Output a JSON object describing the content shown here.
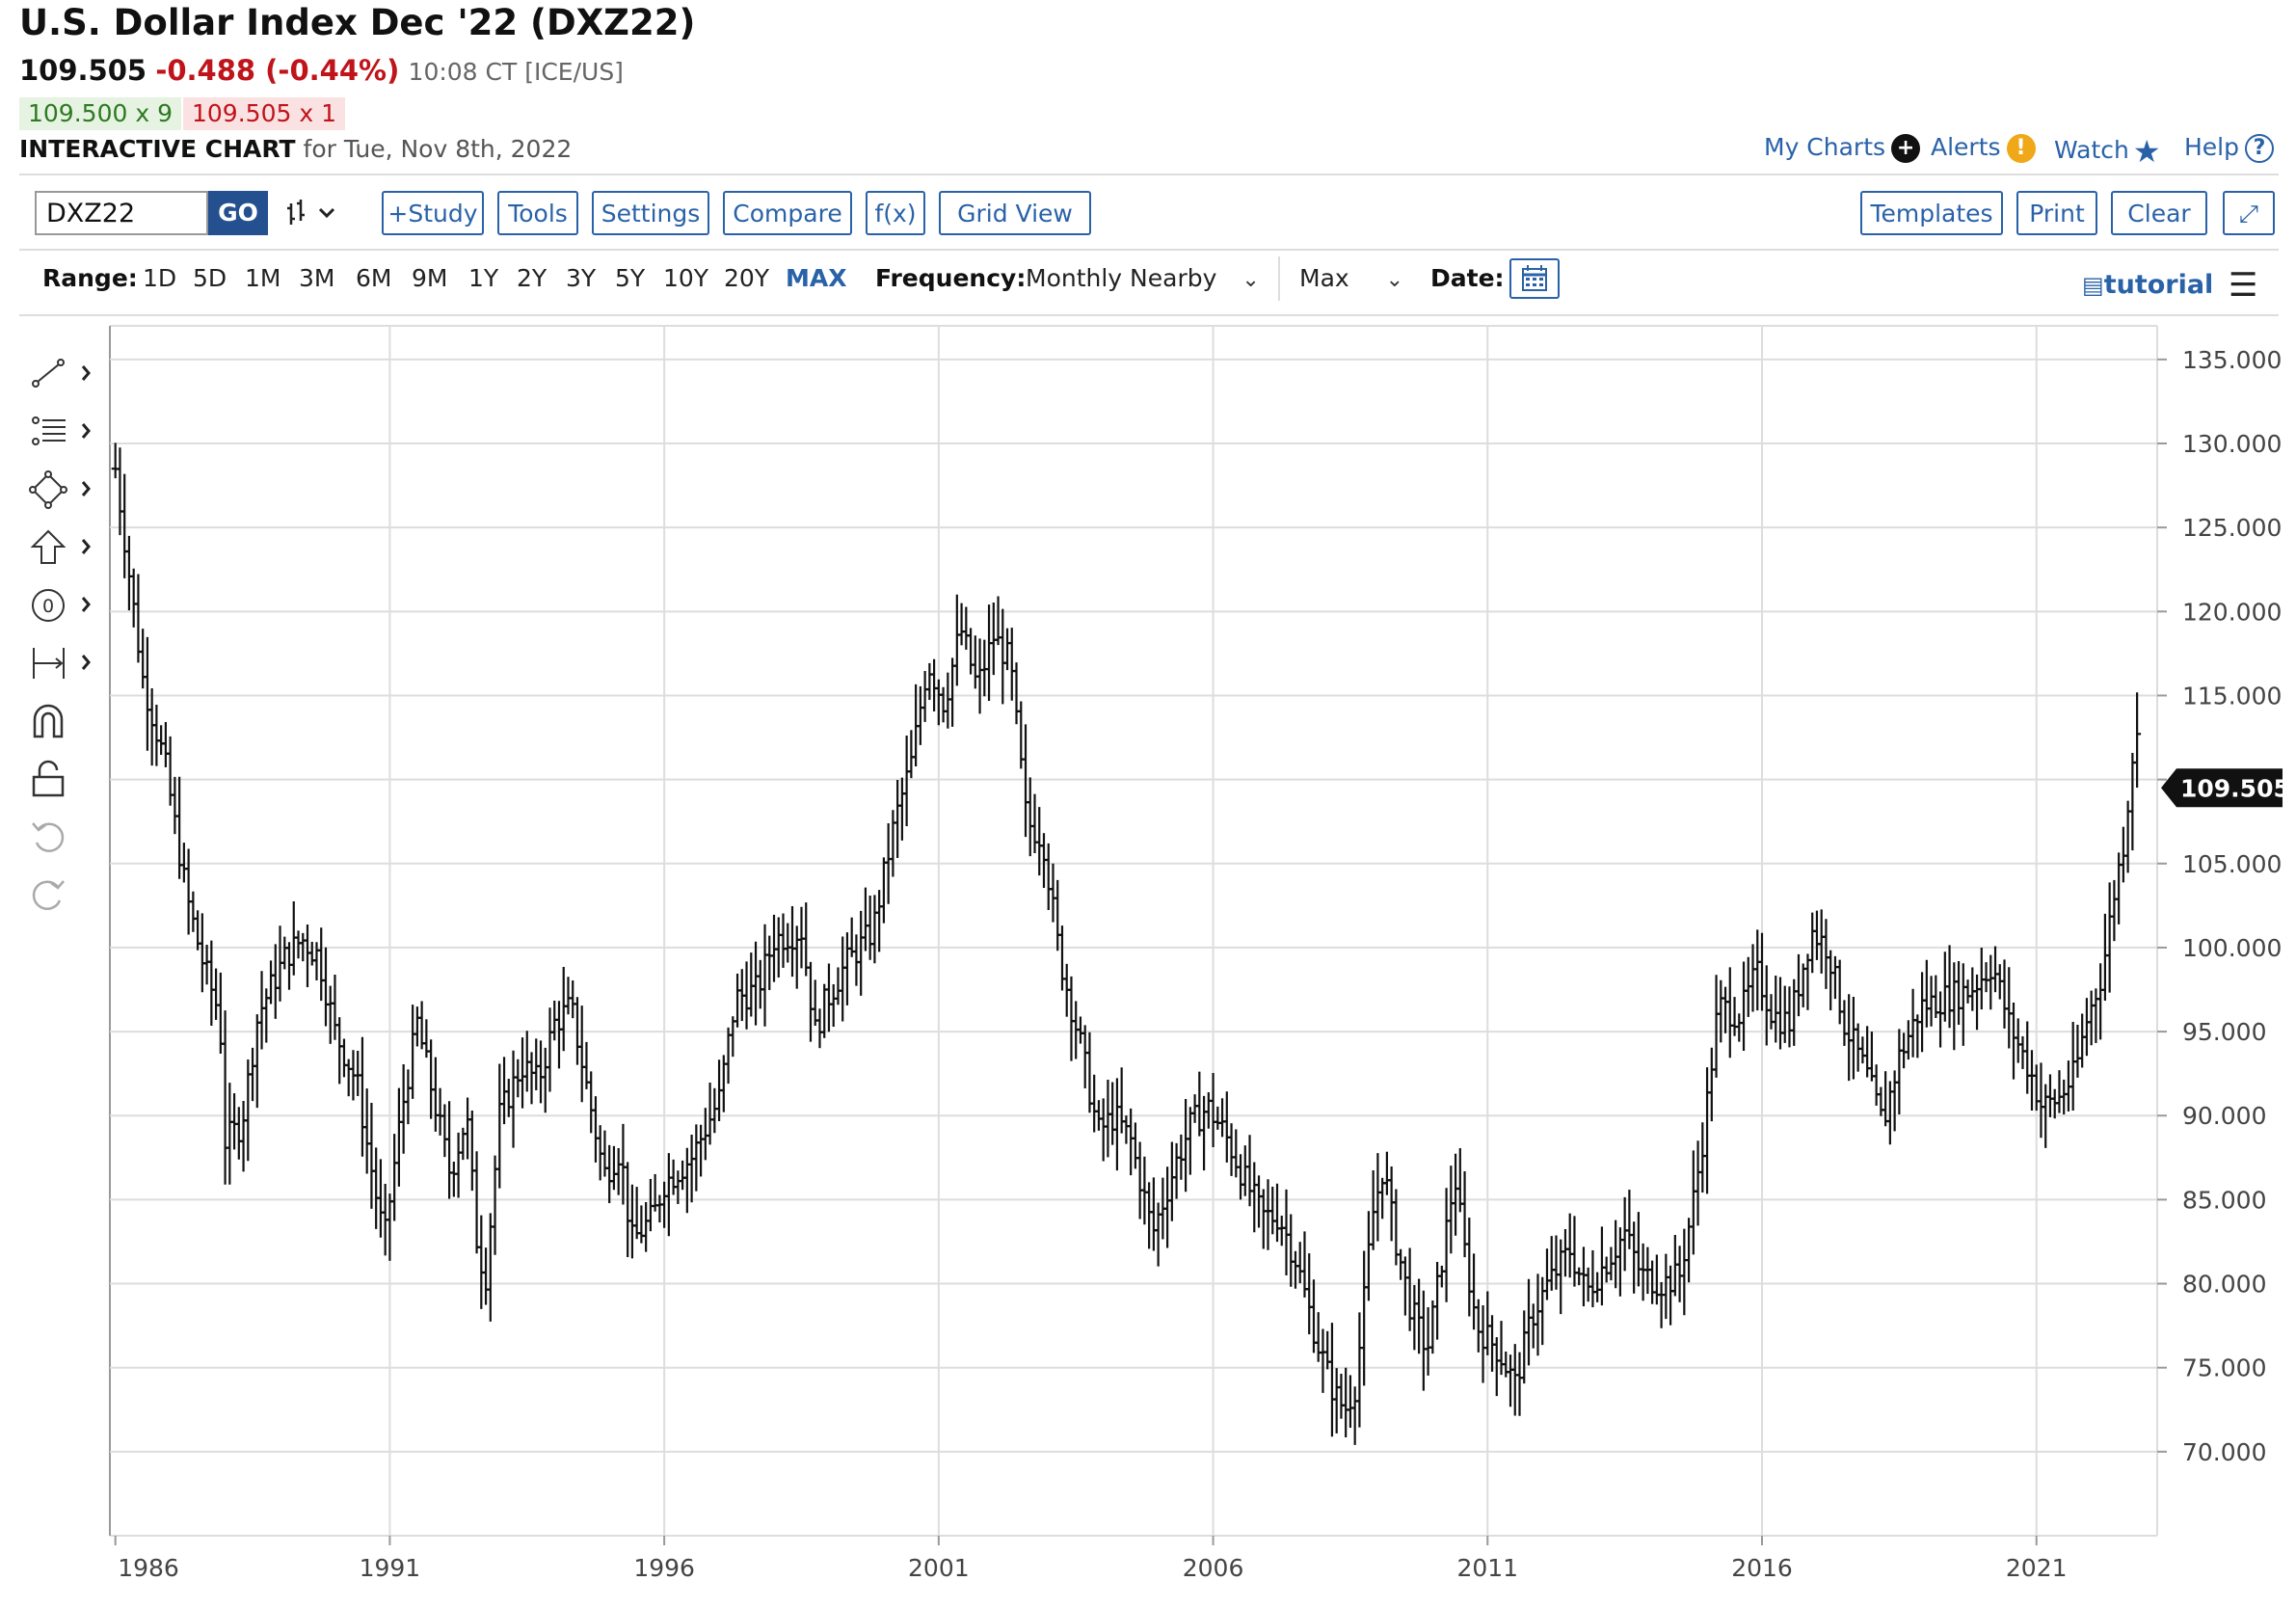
{
  "header": {
    "title": "U.S. Dollar Index Dec '22 (DXZ22)",
    "last": "109.505",
    "change": "-0.488 (-0.44%)",
    "time": "10:08 CT [ICE/US]",
    "bid": "109.500 x 9",
    "ask": "109.505 x 1",
    "interactive_label": "INTERACTIVE CHART",
    "interactive_date": "for Tue, Nov 8th, 2022"
  },
  "top_links": {
    "my_charts": "My Charts",
    "alerts": "Alerts",
    "watch": "Watch",
    "help": "Help"
  },
  "toolbar": {
    "symbol": "DXZ22",
    "go": "GO",
    "study": "+Study",
    "tools": "Tools",
    "settings": "Settings",
    "compare": "Compare",
    "fx": "f(x)",
    "grid_view": "Grid View",
    "templates": "Templates",
    "print": "Print",
    "clear": "Clear"
  },
  "range_bar": {
    "range_label": "Range:",
    "ranges": [
      "1D",
      "5D",
      "1M",
      "3M",
      "6M",
      "9M",
      "1Y",
      "2Y",
      "3Y",
      "5Y",
      "10Y",
      "20Y",
      "MAX"
    ],
    "frequency_label": "Frequency:",
    "frequency": "Monthly Nearby",
    "period": "Max",
    "date_label": "Date:",
    "tutorial": "tutorial"
  },
  "colors": {
    "accent": "#2a62a8",
    "down": "#c0141b",
    "up": "#2d7a22",
    "bars": "#111111",
    "grid": "#dddddd"
  },
  "chart_data": {
    "type": "ohlc",
    "frequency": "monthly",
    "title": "U.S. Dollar Index Dec '22 (DXZ22)",
    "last_price_label": "109.505",
    "ylim": [
      65.0,
      137.0
    ],
    "y_ticks": [
      "135.000",
      "130.000",
      "125.000",
      "120.000",
      "115.000",
      "110.000",
      "105.000",
      "100.000",
      "95.000",
      "90.000",
      "85.000",
      "80.000",
      "75.000",
      "70.000"
    ],
    "x_ticks": [
      "1986",
      "1991",
      "1996",
      "2001",
      "2006",
      "2011",
      "2016",
      "2021"
    ],
    "x_range": [
      1985.9,
      2023.2
    ],
    "anchors": [
      [
        1986.0,
        128.5
      ],
      [
        1986.5,
        116.0
      ],
      [
        1986.9,
        111.0
      ],
      [
        1987.3,
        103.0
      ],
      [
        1987.6,
        99.0
      ],
      [
        1987.9,
        96.0
      ],
      [
        1988.0,
        88.5
      ],
      [
        1988.3,
        89.5
      ],
      [
        1988.6,
        96.0
      ],
      [
        1989.1,
        99.5
      ],
      [
        1989.4,
        100.5
      ],
      [
        1989.7,
        99.5
      ],
      [
        1990.0,
        95.0
      ],
      [
        1990.4,
        92.0
      ],
      [
        1990.6,
        88.0
      ],
      [
        1990.9,
        82.5
      ],
      [
        1991.2,
        90.0
      ],
      [
        1991.5,
        95.5
      ],
      [
        1991.8,
        91.0
      ],
      [
        1992.1,
        86.5
      ],
      [
        1992.4,
        90.0
      ],
      [
        1992.6,
        82.0
      ],
      [
        1992.75,
        80.5
      ],
      [
        1993.0,
        90.0
      ],
      [
        1993.4,
        93.0
      ],
      [
        1993.7,
        92.0
      ],
      [
        1994.0,
        95.5
      ],
      [
        1994.3,
        96.5
      ],
      [
        1994.6,
        91.5
      ],
      [
        1994.9,
        86.5
      ],
      [
        1995.2,
        88.0
      ],
      [
        1995.4,
        82.5
      ],
      [
        1995.8,
        84.0
      ],
      [
        1996.0,
        86.0
      ],
      [
        1996.5,
        87.5
      ],
      [
        1997.0,
        91.0
      ],
      [
        1997.3,
        97.0
      ],
      [
        1997.7,
        97.5
      ],
      [
        1998.0,
        100.5
      ],
      [
        1998.5,
        101.0
      ],
      [
        1998.75,
        95.0
      ],
      [
        1998.9,
        96.5
      ],
      [
        1999.3,
        99.0
      ],
      [
        1999.8,
        101.0
      ],
      [
        2000.2,
        107.5
      ],
      [
        2000.5,
        111.0
      ],
      [
        2000.8,
        117.0
      ],
      [
        2001.1,
        114.5
      ],
      [
        2001.4,
        119.0
      ],
      [
        2001.7,
        115.5
      ],
      [
        2002.0,
        118.5
      ],
      [
        2002.3,
        117.0
      ],
      [
        2002.6,
        107.5
      ],
      [
        2002.9,
        106.5
      ],
      [
        2003.2,
        99.5
      ],
      [
        2003.6,
        94.0
      ],
      [
        2003.9,
        89.0
      ],
      [
        2004.2,
        90.0
      ],
      [
        2004.5,
        88.5
      ],
      [
        2004.9,
        83.0
      ],
      [
        2005.3,
        87.0
      ],
      [
        2005.6,
        89.5
      ],
      [
        2005.9,
        90.5
      ],
      [
        2006.2,
        89.0
      ],
      [
        2006.6,
        86.0
      ],
      [
        2006.9,
        84.0
      ],
      [
        2007.2,
        84.0
      ],
      [
        2007.5,
        81.5
      ],
      [
        2007.9,
        76.5
      ],
      [
        2008.2,
        73.5
      ],
      [
        2008.4,
        72.5
      ],
      [
        2008.6,
        74.0
      ],
      [
        2008.9,
        84.0
      ],
      [
        2009.1,
        87.0
      ],
      [
        2009.3,
        83.0
      ],
      [
        2009.6,
        78.5
      ],
      [
        2009.9,
        76.0
      ],
      [
        2010.1,
        80.0
      ],
      [
        2010.4,
        86.5
      ],
      [
        2010.6,
        81.5
      ],
      [
        2010.8,
        77.5
      ],
      [
        2011.2,
        76.0
      ],
      [
        2011.5,
        74.0
      ],
      [
        2011.8,
        78.0
      ],
      [
        2012.1,
        80.0
      ],
      [
        2012.5,
        82.0
      ],
      [
        2012.8,
        79.5
      ],
      [
        2013.1,
        81.0
      ],
      [
        2013.5,
        83.0
      ],
      [
        2013.8,
        80.5
      ],
      [
        2014.2,
        80.0
      ],
      [
        2014.5,
        80.5
      ],
      [
        2014.7,
        84.0
      ],
      [
        2014.9,
        88.0
      ],
      [
        2015.2,
        96.5
      ],
      [
        2015.6,
        96.0
      ],
      [
        2015.9,
        98.5
      ],
      [
        2016.2,
        96.0
      ],
      [
        2016.5,
        95.5
      ],
      [
        2016.9,
        101.0
      ],
      [
        2017.2,
        100.0
      ],
      [
        2017.5,
        95.5
      ],
      [
        2017.9,
        92.5
      ],
      [
        2018.2,
        89.5
      ],
      [
        2018.5,
        93.5
      ],
      [
        2018.9,
        96.5
      ],
      [
        2019.3,
        97.0
      ],
      [
        2019.8,
        97.5
      ],
      [
        2020.2,
        99.0
      ],
      [
        2020.5,
        95.5
      ],
      [
        2020.9,
        92.5
      ],
      [
        2021.1,
        90.5
      ],
      [
        2021.4,
        91.0
      ],
      [
        2021.7,
        92.5
      ],
      [
        2021.9,
        95.5
      ],
      [
        2022.2,
        98.5
      ],
      [
        2022.4,
        103.0
      ],
      [
        2022.6,
        106.5
      ],
      [
        2022.75,
        111.5
      ],
      [
        2022.85,
        112.5
      ],
      [
        2022.87,
        109.505
      ]
    ]
  }
}
